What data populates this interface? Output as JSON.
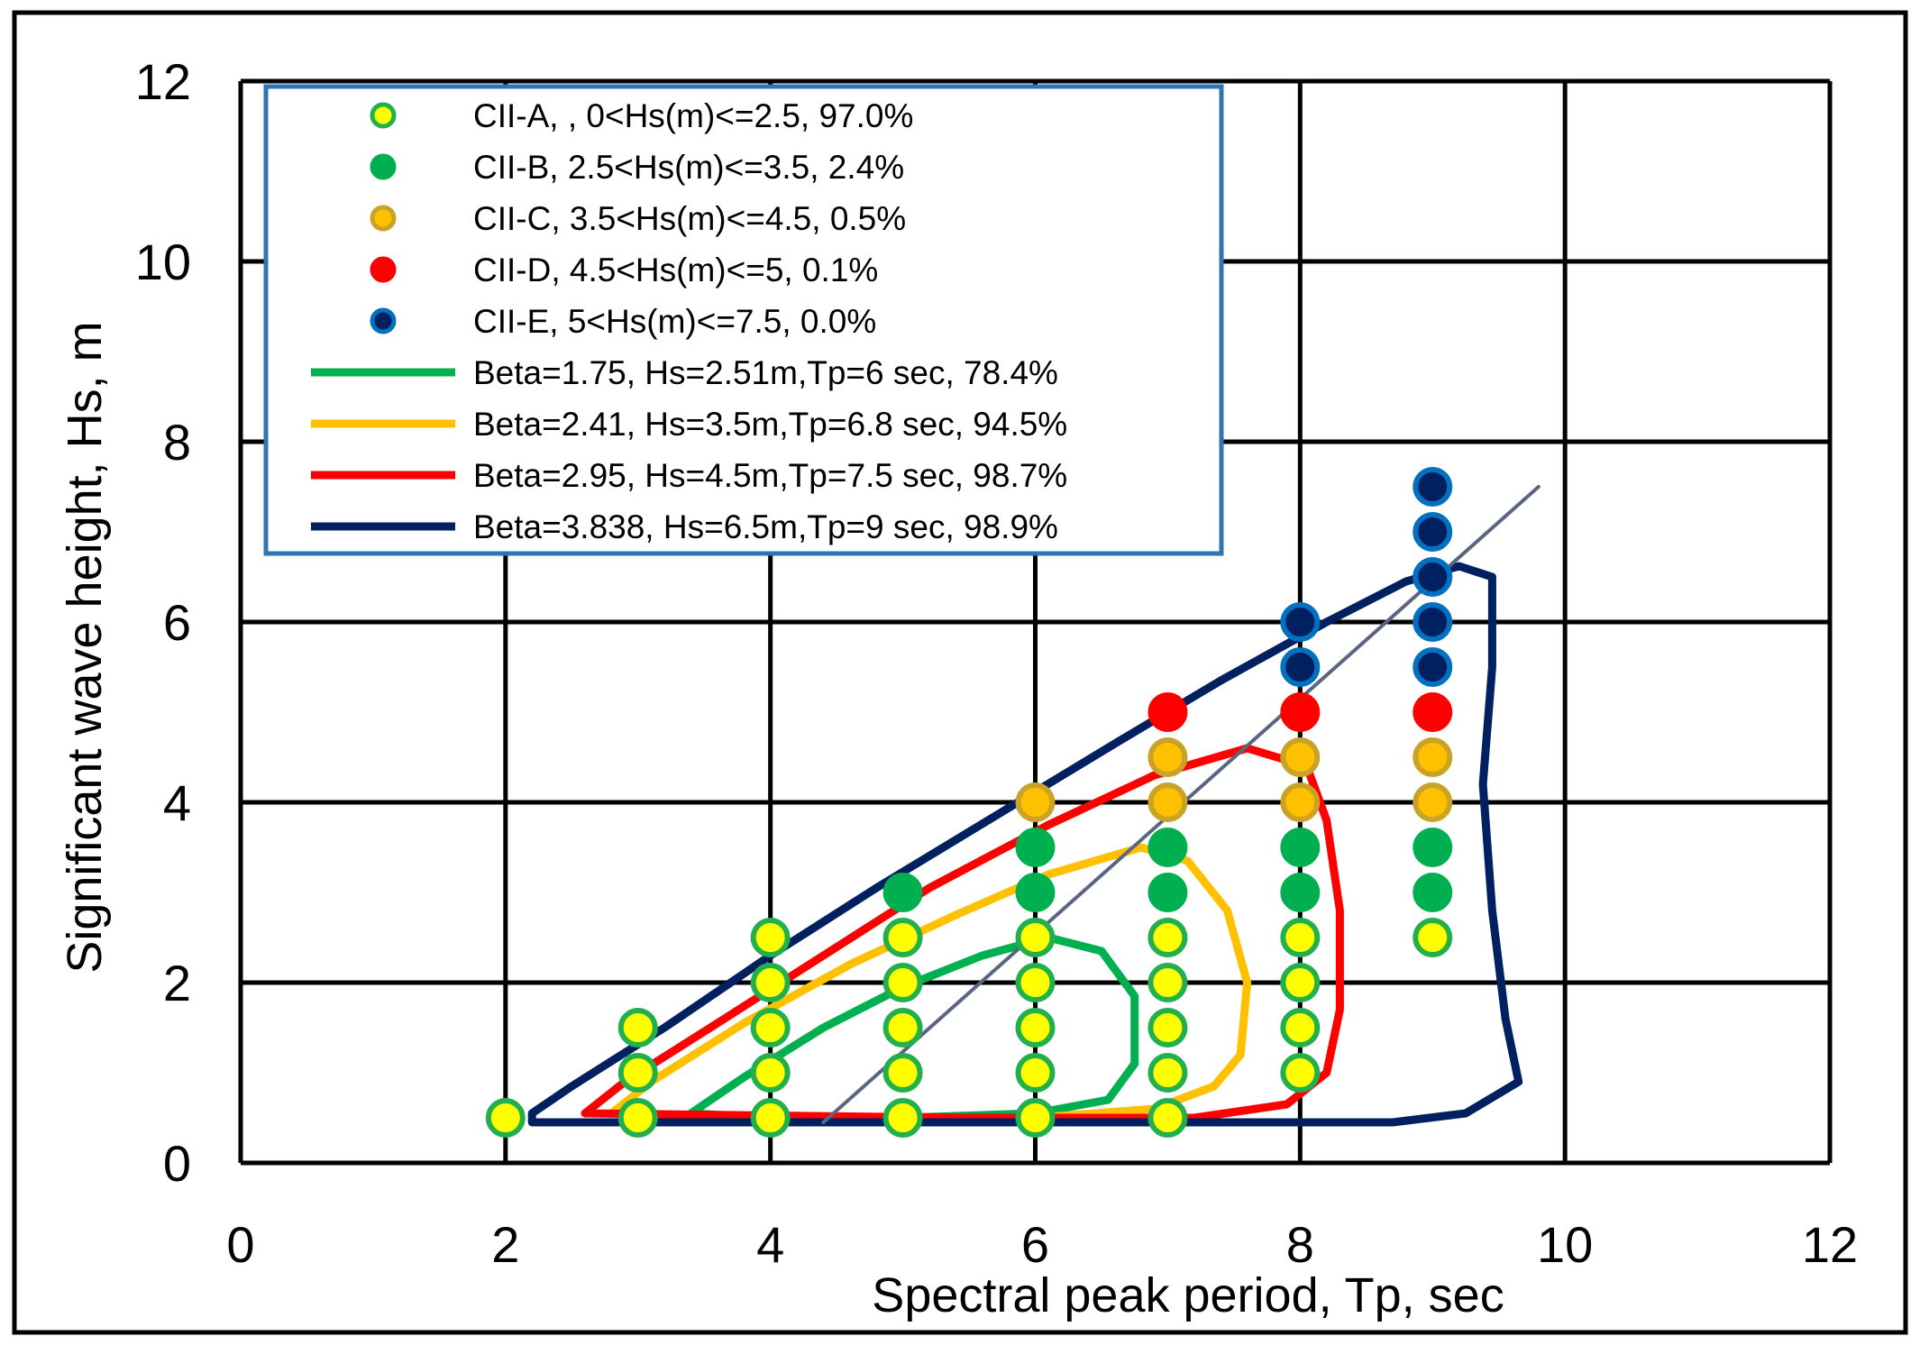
{
  "chart_data": {
    "type": "scatter",
    "xlabel": "Spectral peak period, Tp, sec",
    "ylabel": "Significant wave height, Hs, m",
    "xlim": [
      0,
      12
    ],
    "ylim": [
      0,
      12
    ],
    "xticks": [
      "0",
      "2",
      "4",
      "6",
      "8",
      "10",
      "12"
    ],
    "yticks": [
      "0",
      "2",
      "4",
      "6",
      "8",
      "10",
      "12"
    ],
    "grid": true,
    "legend_position": "top-left",
    "series": [
      {
        "name": "CII-A, , 0<Hs(m)<=2.5, 97.0%",
        "kind": "points",
        "fill": "#ffff00",
        "stroke": "#22b04c",
        "points": [
          [
            2,
            0.5
          ],
          [
            3,
            0.5
          ],
          [
            3,
            1
          ],
          [
            3,
            1.5
          ],
          [
            4,
            0.5
          ],
          [
            4,
            1
          ],
          [
            4,
            1.5
          ],
          [
            4,
            2
          ],
          [
            4,
            2.5
          ],
          [
            5,
            0.5
          ],
          [
            5,
            1
          ],
          [
            5,
            1.5
          ],
          [
            5,
            2
          ],
          [
            5,
            2.5
          ],
          [
            6,
            0.5
          ],
          [
            6,
            1
          ],
          [
            6,
            1.5
          ],
          [
            6,
            2
          ],
          [
            6,
            2.5
          ],
          [
            7,
            0.5
          ],
          [
            7,
            1
          ],
          [
            7,
            1.5
          ],
          [
            7,
            2
          ],
          [
            7,
            2.5
          ],
          [
            8,
            1
          ],
          [
            8,
            1.5
          ],
          [
            8,
            2
          ],
          [
            8,
            2.5
          ],
          [
            9,
            2.5
          ]
        ]
      },
      {
        "name": "CII-B, 2.5<Hs(m)<=3.5, 2.4%",
        "kind": "points",
        "fill": "#00b050",
        "stroke": "#00b050",
        "points": [
          [
            5,
            3
          ],
          [
            6,
            3
          ],
          [
            6,
            3.5
          ],
          [
            7,
            3
          ],
          [
            7,
            3.5
          ],
          [
            8,
            3
          ],
          [
            8,
            3.5
          ],
          [
            9,
            3
          ],
          [
            9,
            3.5
          ]
        ]
      },
      {
        "name": "CII-C, 3.5<Hs(m)<=4.5, 0.5%",
        "kind": "points",
        "fill": "#ffc000",
        "stroke": "#c9a227",
        "points": [
          [
            6,
            4
          ],
          [
            7,
            4
          ],
          [
            7,
            4.5
          ],
          [
            8,
            4
          ],
          [
            8,
            4.5
          ],
          [
            9,
            4
          ],
          [
            9,
            4.5
          ]
        ]
      },
      {
        "name": "CII-D, 4.5<Hs(m)<=5, 0.1%",
        "kind": "points",
        "fill": "#ff0000",
        "stroke": "#ff0000",
        "points": [
          [
            7,
            5
          ],
          [
            8,
            5
          ],
          [
            9,
            5
          ]
        ]
      },
      {
        "name": "CII-E, 5<Hs(m)<=7.5, 0.0%",
        "kind": "points",
        "fill": "#002060",
        "stroke": "#0070c0",
        "points": [
          [
            8,
            5.5
          ],
          [
            8,
            6
          ],
          [
            9,
            5.5
          ],
          [
            9,
            6
          ],
          [
            9,
            6.5
          ],
          [
            9,
            7
          ],
          [
            9,
            7.5
          ]
        ]
      },
      {
        "name": "Beta=1.75, Hs=2.51m,Tp=6 sec, 78.4%",
        "kind": "contour",
        "color": "#00b050",
        "points": [
          [
            3.4,
            0.55
          ],
          [
            3.8,
            0.95
          ],
          [
            4.4,
            1.5
          ],
          [
            5.0,
            1.95
          ],
          [
            5.6,
            2.3
          ],
          [
            6.1,
            2.5
          ],
          [
            6.5,
            2.35
          ],
          [
            6.75,
            1.85
          ],
          [
            6.75,
            1.1
          ],
          [
            6.55,
            0.7
          ],
          [
            6.0,
            0.55
          ],
          [
            5.0,
            0.5
          ],
          [
            4.0,
            0.5
          ],
          [
            3.4,
            0.55
          ]
        ]
      },
      {
        "name": "Beta=2.41, Hs=3.5m,Tp=6.8 sec, 94.5%",
        "kind": "contour",
        "color": "#ffc000",
        "points": [
          [
            2.8,
            0.55
          ],
          [
            3.1,
            0.9
          ],
          [
            3.8,
            1.55
          ],
          [
            4.6,
            2.2
          ],
          [
            5.4,
            2.75
          ],
          [
            6.1,
            3.2
          ],
          [
            6.8,
            3.5
          ],
          [
            7.15,
            3.35
          ],
          [
            7.45,
            2.8
          ],
          [
            7.6,
            2.0
          ],
          [
            7.55,
            1.2
          ],
          [
            7.35,
            0.85
          ],
          [
            6.9,
            0.6
          ],
          [
            6.0,
            0.5
          ],
          [
            4.5,
            0.5
          ],
          [
            2.8,
            0.55
          ]
        ]
      },
      {
        "name": "Beta=2.95, Hs=4.5m,Tp=7.5 sec, 98.7%",
        "kind": "contour",
        "color": "#ff0000",
        "points": [
          [
            2.6,
            0.55
          ],
          [
            2.9,
            0.9
          ],
          [
            3.6,
            1.55
          ],
          [
            4.4,
            2.3
          ],
          [
            5.2,
            3.05
          ],
          [
            6.1,
            3.75
          ],
          [
            6.9,
            4.3
          ],
          [
            7.6,
            4.6
          ],
          [
            8.05,
            4.4
          ],
          [
            8.2,
            3.8
          ],
          [
            8.3,
            2.8
          ],
          [
            8.3,
            1.7
          ],
          [
            8.2,
            1.0
          ],
          [
            7.9,
            0.65
          ],
          [
            7.2,
            0.5
          ],
          [
            5.5,
            0.5
          ],
          [
            2.6,
            0.55
          ]
        ]
      },
      {
        "name": "Beta=3.838, Hs=6.5m,Tp=9 sec, 98.9%",
        "kind": "contour",
        "color": "#002060",
        "points": [
          [
            2.2,
            0.55
          ],
          [
            2.5,
            0.85
          ],
          [
            3.2,
            1.5
          ],
          [
            4.0,
            2.3
          ],
          [
            4.8,
            3.05
          ],
          [
            5.7,
            3.85
          ],
          [
            6.6,
            4.65
          ],
          [
            7.4,
            5.35
          ],
          [
            8.2,
            6.0
          ],
          [
            8.8,
            6.45
          ],
          [
            9.2,
            6.62
          ],
          [
            9.45,
            6.5
          ],
          [
            9.45,
            5.5
          ],
          [
            9.38,
            4.2
          ],
          [
            9.45,
            2.8
          ],
          [
            9.55,
            1.6
          ],
          [
            9.65,
            0.9
          ],
          [
            9.25,
            0.55
          ],
          [
            8.7,
            0.45
          ],
          [
            6.0,
            0.45
          ],
          [
            2.2,
            0.45
          ],
          [
            2.2,
            0.55
          ]
        ]
      },
      {
        "kind": "line",
        "color": "#596680",
        "points": [
          [
            4.4,
            0.45
          ],
          [
            9.8,
            7.5
          ]
        ]
      }
    ]
  }
}
